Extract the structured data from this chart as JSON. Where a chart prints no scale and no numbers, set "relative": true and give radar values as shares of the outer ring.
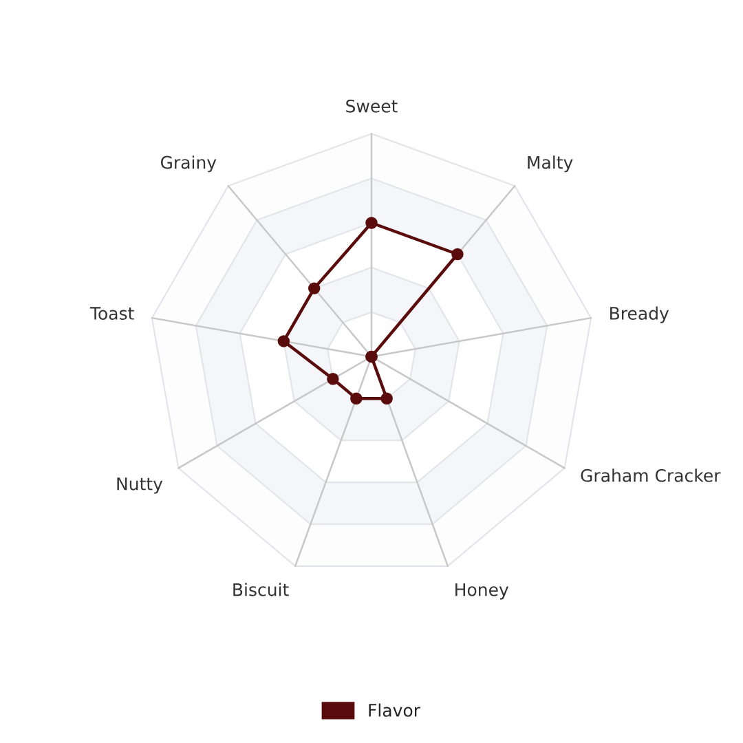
{
  "chart_data": {
    "type": "radar",
    "relative": true,
    "categories": [
      "Sweet",
      "Malty",
      "Bready",
      "Graham Cracker",
      "Honey",
      "Biscuit",
      "Nutty",
      "Toast",
      "Grainy"
    ],
    "series": [
      {
        "name": "Flavor",
        "color": "#5a0c0c",
        "values": [
          0.6,
          0.6,
          0,
          0,
          0.2,
          0.2,
          0.2,
          0.4,
          0.4
        ]
      }
    ],
    "marker": "circle",
    "legend": "bottom"
  }
}
